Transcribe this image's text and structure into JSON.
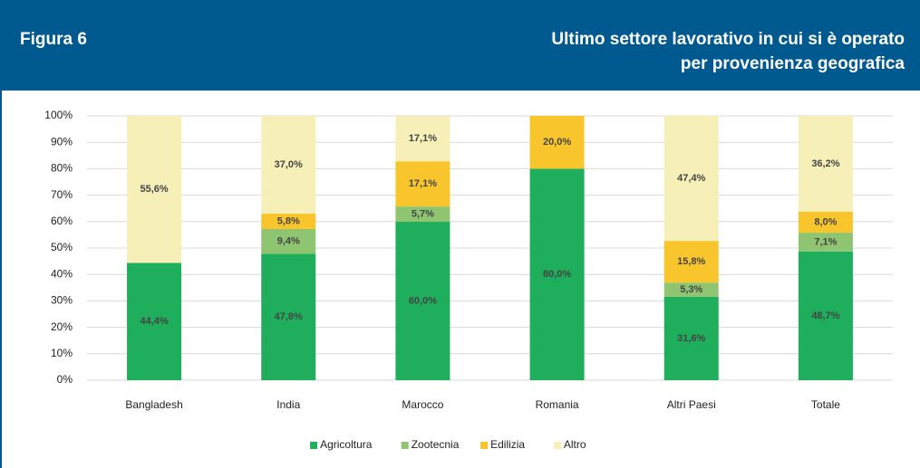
{
  "header": {
    "label": "Figura 6",
    "title": [
      "Ultimo settore lavorativo in cui si è operato",
      "per provenienza geografica"
    ]
  },
  "chart_data": {
    "type": "stacked_bar",
    "categories": [
      "Bangladesh",
      "India",
      "Marocco",
      "Romania",
      "Altri Paesi",
      "Totale"
    ],
    "series": [
      {
        "name": "Agricoltura",
        "color": "#1fae5b",
        "values": [
          44.4,
          47.8,
          60.0,
          80.0,
          31.6,
          48.7
        ],
        "value_labels": [
          "44,4%",
          "47,8%",
          "60,0%",
          "80,0%",
          "31,6%",
          "48,7%"
        ]
      },
      {
        "name": "Zootecnia",
        "color": "#8fc470",
        "values": [
          null,
          9.4,
          5.7,
          null,
          5.3,
          7.1
        ],
        "value_labels": [
          null,
          "9,4%",
          "5,7%",
          null,
          "5,3%",
          "7,1%"
        ]
      },
      {
        "name": "Edilizia",
        "color": "#f8c62c",
        "values": [
          null,
          5.8,
          17.1,
          20.0,
          15.8,
          8.0
        ],
        "value_labels": [
          null,
          "5,8%",
          "17,1%",
          "20,0%",
          "15,8%",
          "8,0%"
        ]
      },
      {
        "name": "Altro",
        "color": "#f6f0b8",
        "values": [
          55.6,
          37.0,
          17.1,
          null,
          47.4,
          36.2
        ],
        "value_labels": [
          "55,6%",
          "37,0%",
          "17,1%",
          null,
          "47,4%",
          "36,2%"
        ]
      }
    ],
    "ylim": [
      0,
      100
    ],
    "yticks": [
      {
        "value": 0,
        "label": "0%"
      },
      {
        "value": 10,
        "label": "10%"
      },
      {
        "value": 20,
        "label": "20%"
      },
      {
        "value": 30,
        "label": "30%"
      },
      {
        "value": 40,
        "label": "40%"
      },
      {
        "value": 50,
        "label": "50%"
      },
      {
        "value": 60,
        "label": "60%"
      },
      {
        "value": 70,
        "label": "70%"
      },
      {
        "value": 80,
        "label": "80%"
      },
      {
        "value": 90,
        "label": "90%"
      },
      {
        "value": 100,
        "label": "100%"
      }
    ],
    "grid": true,
    "legend": "bottom"
  }
}
